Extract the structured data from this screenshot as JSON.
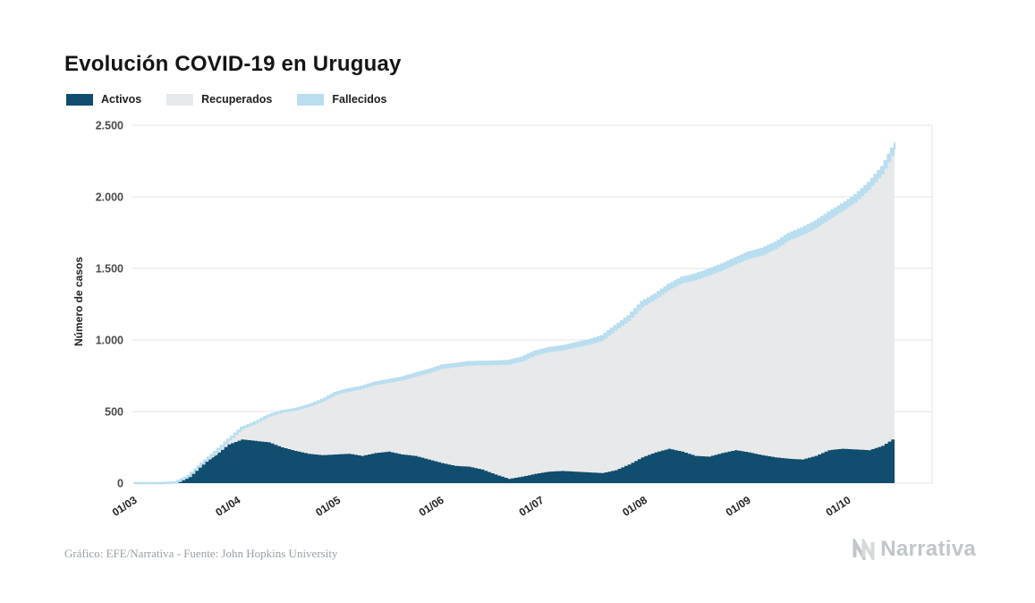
{
  "page": {
    "title": "Evolución COVID-19 en Uruguay",
    "footer_caption": "Gráfico: EFE/Narrativa - Fuente: John Hopkins University",
    "brand": "Narrativa"
  },
  "colors": {
    "activos": "#114d6e",
    "recuperados": "#e8e9ea",
    "fallecidos": "#b9def0",
    "grid": "#e6e6e6",
    "brand_gray": "#c2c6c8"
  },
  "chart_data": {
    "type": "area",
    "stacked": true,
    "title": "Evolución COVID-19 en Uruguay",
    "xlabel": "",
    "ylabel": "Número de casos",
    "ylim": [
      0,
      2500
    ],
    "yticks": [
      "0",
      "500",
      "1.000",
      "1.500",
      "2.000",
      "2.500"
    ],
    "xticks": [
      "01/03",
      "01/04",
      "01/05",
      "01/06",
      "01/07",
      "01/08",
      "01/09",
      "01/10"
    ],
    "grid": "horizontal",
    "legend_position": "top-left",
    "x": [
      "01/03",
      "05/03",
      "09/03",
      "13/03",
      "17/03",
      "21/03",
      "25/03",
      "29/03",
      "02/04",
      "06/04",
      "10/04",
      "14/04",
      "18/04",
      "22/04",
      "26/04",
      "30/04",
      "04/05",
      "08/05",
      "12/05",
      "16/05",
      "20/05",
      "24/05",
      "28/05",
      "01/06",
      "05/06",
      "09/06",
      "13/06",
      "17/06",
      "21/06",
      "25/06",
      "29/06",
      "03/07",
      "07/07",
      "11/07",
      "15/07",
      "19/07",
      "23/07",
      "27/07",
      "31/07",
      "04/08",
      "08/08",
      "12/08",
      "16/08",
      "20/08",
      "24/08",
      "28/08",
      "01/09",
      "05/09",
      "09/09",
      "13/09",
      "17/09",
      "21/09",
      "25/09",
      "29/09",
      "03/10",
      "07/10",
      "11/10",
      "15/10"
    ],
    "series": [
      {
        "name": "Activos",
        "color": "#114d6e",
        "values": [
          0,
          0,
          0,
          4,
          50,
          135,
          195,
          270,
          305,
          295,
          285,
          250,
          225,
          205,
          195,
          200,
          205,
          190,
          210,
          220,
          200,
          190,
          165,
          140,
          120,
          115,
          95,
          60,
          30,
          45,
          65,
          80,
          85,
          80,
          75,
          70,
          90,
          130,
          180,
          215,
          240,
          220,
          190,
          185,
          210,
          230,
          215,
          195,
          180,
          170,
          165,
          190,
          230,
          240,
          235,
          230,
          260,
          320
        ]
      },
      {
        "name": "Recuperados",
        "color": "#e8e9ea",
        "values": [
          0,
          0,
          0,
          0,
          0,
          1,
          21,
          30,
          76,
          123,
          181,
          243,
          282,
          327,
          372,
          415,
          434,
          466,
          474,
          480,
          517,
          553,
          602,
          658,
          689,
          706,
          728,
          764,
          797,
          804,
          826,
          835,
          841,
          867,
          891,
          924,
          973,
          1002,
          1049,
          1067,
          1108,
          1176,
          1227,
          1264,
          1275,
          1297,
          1351,
          1396,
          1453,
          1525,
          1568,
          1590,
          1612,
          1658,
          1726,
          1817,
          1896,
          2007
        ]
      },
      {
        "name": "Fallecidos",
        "color": "#b9def0",
        "values": [
          0,
          0,
          0,
          0,
          0,
          1,
          1,
          4,
          5,
          6,
          7,
          9,
          10,
          11,
          13,
          15,
          16,
          17,
          18,
          19,
          20,
          21,
          22,
          23,
          23,
          24,
          24,
          25,
          26,
          27,
          28,
          28,
          29,
          30,
          31,
          32,
          33,
          34,
          35,
          36,
          37,
          38,
          40,
          41,
          42,
          43,
          45,
          45,
          46,
          46,
          47,
          47,
          48,
          48,
          49,
          50,
          51,
          53
        ]
      }
    ]
  }
}
